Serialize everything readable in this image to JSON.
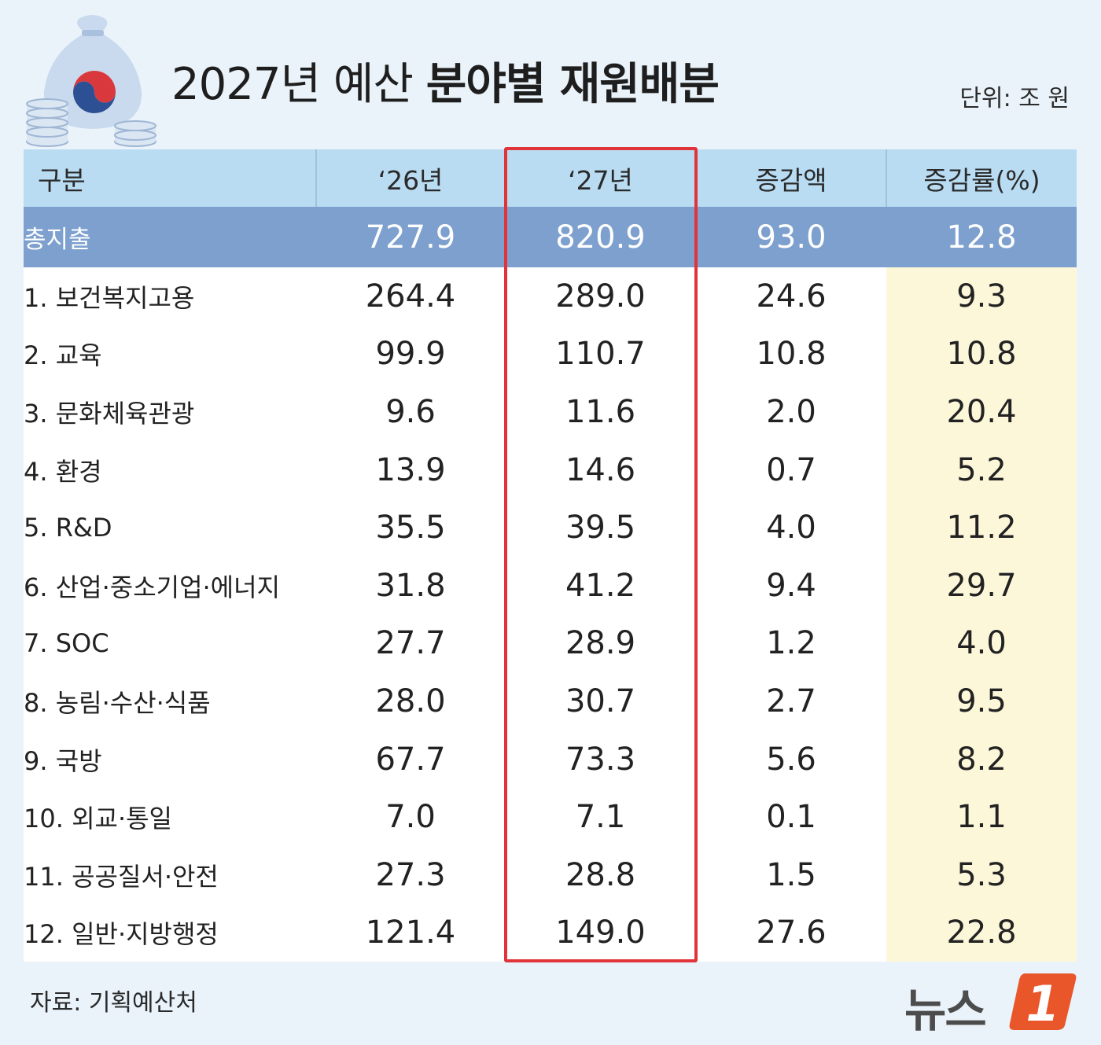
{
  "header": {
    "title_light": "2027년 예산",
    "title_bold": "분야별 재원배분",
    "unit": "단위: 조 원"
  },
  "colors": {
    "header_bg": "#b9dcf3",
    "total_bg": "#7da0cf",
    "rate_bg": "#fdf7da",
    "highlight": "#e0343a"
  },
  "chart_data": {
    "type": "table",
    "title": "2027년 예산 분야별 재원배분",
    "unit": "단위: 조 원",
    "columns": [
      "구분",
      "‘26년",
      "‘27년",
      "증감액",
      "증감률(%)"
    ],
    "highlighted_column": "‘27년",
    "total": {
      "label": "총지출",
      "y2026": "727.9",
      "y2027": "820.9",
      "change": "93.0",
      "rate": "12.8"
    },
    "rows": [
      {
        "label": "1. 보건복지고용",
        "y2026": "264.4",
        "y2027": "289.0",
        "change": "24.6",
        "rate": "9.3"
      },
      {
        "label": "2. 교육",
        "y2026": "99.9",
        "y2027": "110.7",
        "change": "10.8",
        "rate": "10.8"
      },
      {
        "label": "3. 문화체육관광",
        "y2026": "9.6",
        "y2027": "11.6",
        "change": "2.0",
        "rate": "20.4"
      },
      {
        "label": "4. 환경",
        "y2026": "13.9",
        "y2027": "14.6",
        "change": "0.7",
        "rate": "5.2"
      },
      {
        "label": "5. R&D",
        "y2026": "35.5",
        "y2027": "39.5",
        "change": "4.0",
        "rate": "11.2"
      },
      {
        "label": "6. 산업·중소기업·에너지",
        "y2026": "31.8",
        "y2027": "41.2",
        "change": "9.4",
        "rate": "29.7"
      },
      {
        "label": "7. SOC",
        "y2026": "27.7",
        "y2027": "28.9",
        "change": "1.2",
        "rate": "4.0"
      },
      {
        "label": "8. 농림·수산·식품",
        "y2026": "28.0",
        "y2027": "30.7",
        "change": "2.7",
        "rate": "9.5"
      },
      {
        "label": "9. 국방",
        "y2026": "67.7",
        "y2027": "73.3",
        "change": "5.6",
        "rate": "8.2"
      },
      {
        "label": "10. 외교·통일",
        "y2026": "7.0",
        "y2027": "7.1",
        "change": "0.1",
        "rate": "1.1"
      },
      {
        "label": "11. 공공질서·안전",
        "y2026": "27.3",
        "y2027": "28.8",
        "change": "1.5",
        "rate": "5.3"
      },
      {
        "label": "12. 일반·지방행정",
        "y2026": "121.4",
        "y2027": "149.0",
        "change": "27.6",
        "rate": "22.8"
      }
    ]
  },
  "footer": {
    "source": "자료: 기획예산처",
    "logo_text": "뉴스",
    "logo_mark": "1"
  }
}
